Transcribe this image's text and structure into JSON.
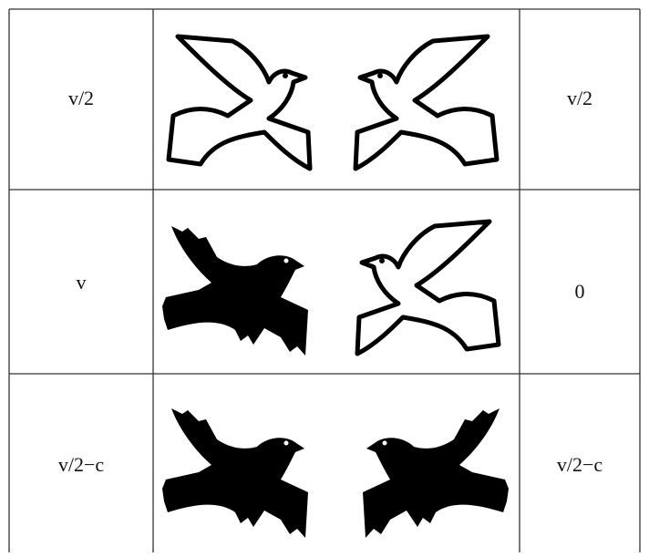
{
  "table": {
    "rows": [
      [
        "v/2",
        "v/2"
      ],
      [
        "v",
        "0"
      ],
      [
        "v/2−c",
        "v/2−c"
      ]
    ]
  }
}
